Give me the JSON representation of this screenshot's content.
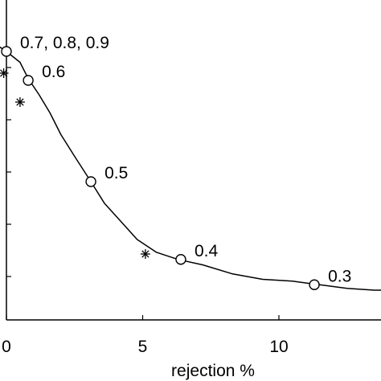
{
  "chart_data": {
    "type": "line",
    "xlabel": "rejection %",
    "ylabel": "",
    "xlim": [
      0,
      14
    ],
    "x_ticks": [
      0,
      5,
      10
    ],
    "x_tick_labels": [
      "0",
      "5",
      "10"
    ],
    "y_tick_count": 5,
    "grid": false,
    "curve": {
      "x": [
        -0.3,
        0.0,
        0.5,
        0.8,
        1.2,
        1.6,
        2.0,
        2.5,
        3.1,
        3.6,
        4.2,
        4.8,
        5.5,
        6.3,
        7.2,
        8.3,
        9.4,
        10.5,
        11.5,
        12.5,
        13.5,
        14.0
      ],
      "y": [
        0.975,
        0.96,
        0.93,
        0.885,
        0.84,
        0.79,
        0.73,
        0.67,
        0.6,
        0.54,
        0.49,
        0.44,
        0.405,
        0.385,
        0.37,
        0.345,
        0.33,
        0.325,
        0.315,
        0.305,
        0.3,
        0.3
      ]
    },
    "markers": [
      {
        "x": 0.0,
        "y": 0.96,
        "label": "0.7, 0.8, 0.9"
      },
      {
        "x": 0.8,
        "y": 0.88,
        "label": "0.6"
      },
      {
        "x": 3.1,
        "y": 0.6,
        "label": "0.5"
      },
      {
        "x": 6.4,
        "y": 0.385,
        "label": "0.4"
      },
      {
        "x": 11.3,
        "y": 0.315,
        "label": "0.3"
      }
    ],
    "stars": [
      {
        "x": -0.1,
        "y": 0.9
      },
      {
        "x": 0.5,
        "y": 0.82
      },
      {
        "x": 5.1,
        "y": 0.4
      }
    ]
  }
}
